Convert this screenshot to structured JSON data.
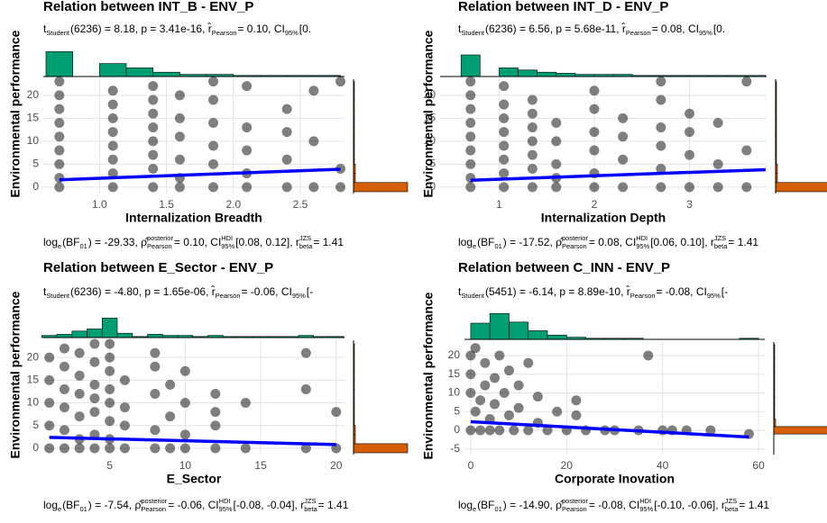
{
  "chart_data": [
    {
      "type": "scatter",
      "title": "Relation between INT_B - ENV_P",
      "subtitle": [
        {
          "text": "t"
        },
        {
          "sub": "Student"
        },
        {
          "text": "(6236) = 8.18, p = 3.41e-16, r̂"
        },
        {
          "sub": "Pearson"
        },
        {
          "text": " = 0.10, CI"
        },
        {
          "sub": "95%"
        },
        {
          "text": " [0."
        }
      ],
      "caption": [
        {
          "text": "log"
        },
        {
          "sub": "e"
        },
        {
          "text": "(BF"
        },
        {
          "sub": "01"
        },
        {
          "text": ") = -29.33, ρ̂"
        },
        {
          "sup": "posterior",
          "sub": "Pearson"
        },
        {
          "text": " = 0.10, CI"
        },
        {
          "sup": "HDI",
          "sub": "95%"
        },
        {
          "text": " [0.08, 0.12], r"
        },
        {
          "sup": "JZS",
          "sub": "beta"
        },
        {
          "text": " = 1.41"
        }
      ],
      "x_label": "Internalization Breadth",
      "y_label": "Environmental performance",
      "xlim": [
        0.58,
        2.83
      ],
      "ylim": [
        -1.4,
        23.5
      ],
      "xticks": [
        {
          "value": 1,
          "label": "1.0"
        },
        1.5,
        {
          "value": 2,
          "label": "2.0"
        },
        2.5
      ],
      "yticks": [
        0,
        5,
        10,
        15,
        20
      ],
      "grid": true,
      "x": [
        0.7,
        0.7,
        0.7,
        0.7,
        0.7,
        0.7,
        0.7,
        0.7,
        0.7,
        1.1,
        1.1,
        1.1,
        1.1,
        1.1,
        1.1,
        1.1,
        1.1,
        1.4,
        1.4,
        1.4,
        1.4,
        1.4,
        1.4,
        1.4,
        1.4,
        1.6,
        1.6,
        1.6,
        1.6,
        1.6,
        1.6,
        1.85,
        1.85,
        1.85,
        1.85,
        1.85,
        1.85,
        2.1,
        2.1,
        2.1,
        2.1,
        2.1,
        2.4,
        2.4,
        2.4,
        2.4,
        2.6,
        2.6,
        2.6,
        2.8,
        2.8,
        2.8
      ],
      "values": [
        0,
        2,
        5,
        8,
        11,
        14,
        17,
        20,
        23,
        0,
        3,
        6,
        9,
        12,
        15,
        18,
        21,
        0,
        4,
        7,
        10,
        13,
        16,
        19,
        22,
        0,
        2,
        6,
        11,
        15,
        20,
        0,
        5,
        9,
        14,
        19,
        23,
        0,
        3,
        8,
        13,
        22,
        0,
        6,
        12,
        17,
        0,
        10,
        21,
        0,
        4,
        23
      ],
      "color": "#000000",
      "fit": {
        "x": [
          0.7,
          2.8
        ],
        "values": [
          1.6,
          3.9
        ],
        "color": "#0000ff"
      },
      "top_hist": {
        "bins": [
          0.6,
          0.8,
          1.0,
          1.2,
          1.4,
          1.6,
          1.8,
          2.0,
          2.2,
          2.4,
          2.6,
          2.8
        ],
        "counts": [
          23,
          0,
          12,
          8,
          4,
          2,
          2,
          1,
          1,
          1,
          1
        ],
        "color": "#009e73"
      },
      "right_hist": {
        "bins": [
          -1,
          1,
          3,
          5,
          7,
          9,
          11,
          13,
          15,
          17,
          19,
          21,
          23
        ],
        "counts": [
          60,
          2,
          2,
          1,
          1,
          1,
          1,
          1,
          1,
          1,
          1,
          1
        ],
        "color": "#d55e00"
      }
    },
    {
      "type": "scatter",
      "title": "Relation between INT_D - ENV_P",
      "subtitle": [
        {
          "text": "t"
        },
        {
          "sub": "Student"
        },
        {
          "text": "(6236) = 6.56, p = 5.68e-11, r̂"
        },
        {
          "sub": "Pearson"
        },
        {
          "text": " = 0.08, CI"
        },
        {
          "sub": "95%"
        },
        {
          "text": " [0."
        }
      ],
      "caption": [
        {
          "text": "log"
        },
        {
          "sub": "e"
        },
        {
          "text": "(BF"
        },
        {
          "sub": "01"
        },
        {
          "text": ") = -17.52, ρ̂"
        },
        {
          "sup": "posterior",
          "sub": "Pearson"
        },
        {
          "text": " = 0.08, CI"
        },
        {
          "sup": "HDI",
          "sub": "95%"
        },
        {
          "text": " [0.06, 0.10], r"
        },
        {
          "sup": "JZS",
          "sub": "beta"
        },
        {
          "text": " = 1.41"
        }
      ],
      "x_label": "Internalization Depth",
      "y_label": "Environmental performance",
      "xlim": [
        0.38,
        3.81
      ],
      "ylim": [
        -1.4,
        23.5
      ],
      "xticks": [
        1,
        2,
        3
      ],
      "yticks": [
        0,
        5,
        10,
        15,
        20
      ],
      "grid": true,
      "x": [
        0.7,
        0.7,
        0.7,
        0.7,
        0.7,
        0.7,
        0.7,
        0.7,
        0.7,
        1.05,
        1.05,
        1.05,
        1.05,
        1.05,
        1.05,
        1.05,
        1.05,
        1.35,
        1.35,
        1.35,
        1.35,
        1.35,
        1.35,
        1.35,
        1.6,
        1.6,
        1.6,
        1.6,
        1.6,
        2.0,
        2.0,
        2.0,
        2.0,
        2.0,
        2.0,
        2.3,
        2.3,
        2.3,
        2.3,
        2.7,
        2.7,
        2.7,
        2.7,
        2.7,
        2.7,
        3.0,
        3.0,
        3.0,
        3.0,
        3.3,
        3.3,
        3.3,
        3.6,
        3.6,
        3.6
      ],
      "values": [
        0,
        2,
        5,
        8,
        11,
        14,
        17,
        20,
        23,
        0,
        3,
        6,
        9,
        12,
        15,
        18,
        22,
        0,
        4,
        7,
        10,
        13,
        16,
        19,
        0,
        2,
        5,
        10,
        14,
        0,
        3,
        8,
        12,
        17,
        21,
        0,
        6,
        11,
        15,
        0,
        4,
        9,
        13,
        19,
        23,
        0,
        7,
        12,
        16,
        0,
        5,
        14,
        0,
        8,
        23
      ],
      "color": "#000000",
      "fit": {
        "x": [
          0.7,
          3.8
        ],
        "values": [
          1.5,
          3.8
        ],
        "color": "#0000ff"
      },
      "top_hist": {
        "bins": [
          0.4,
          0.6,
          0.8,
          1.0,
          1.2,
          1.4,
          1.6,
          1.8,
          2.0,
          2.2,
          2.4,
          2.6,
          2.8,
          3.0,
          3.2,
          3.4,
          3.6,
          3.8
        ],
        "counts": [
          0,
          20,
          0,
          8,
          6,
          4,
          3,
          2,
          2,
          2,
          1,
          1,
          1,
          1,
          1,
          1,
          1
        ],
        "color": "#009e73"
      },
      "right_hist": {
        "bins": [
          -1,
          1,
          3,
          5,
          7,
          9,
          11,
          13,
          15,
          17,
          19,
          21,
          23
        ],
        "counts": [
          60,
          2,
          2,
          1,
          1,
          1,
          1,
          1,
          1,
          1,
          1,
          1
        ],
        "color": "#d55e00"
      }
    },
    {
      "type": "scatter",
      "title": "Relation between E_Sector - ENV_P",
      "subtitle": [
        {
          "text": "t"
        },
        {
          "sub": "Student"
        },
        {
          "text": "(6236) = -4.80, p = 1.65e-06, r̂"
        },
        {
          "sub": "Pearson"
        },
        {
          "text": " = -0.06, CI"
        },
        {
          "sub": "95%"
        },
        {
          "text": " [-"
        }
      ],
      "caption": [
        {
          "text": "log"
        },
        {
          "sub": "e"
        },
        {
          "text": "(BF"
        },
        {
          "sub": "01"
        },
        {
          "text": ") = -7.54, ρ̂"
        },
        {
          "sup": "posterior",
          "sub": "Pearson"
        },
        {
          "text": " = -0.06, CI"
        },
        {
          "sup": "HDI",
          "sub": "95%"
        },
        {
          "text": " [-0.08, -0.04], r"
        },
        {
          "sup": "JZS",
          "sub": "beta"
        },
        {
          "text": " = 1.41"
        }
      ],
      "x_label": "E_Sector",
      "y_label": "Environmental performance",
      "xlim": [
        0.6,
        20.55
      ],
      "ylim": [
        -1.4,
        23.8
      ],
      "xticks": [
        5,
        10,
        15,
        20
      ],
      "yticks": [
        0,
        5,
        10,
        15,
        20
      ],
      "grid": true,
      "x": [
        1,
        1,
        1,
        1,
        1,
        2,
        2,
        2,
        2,
        2,
        2,
        3,
        3,
        3,
        3,
        3,
        3,
        4,
        4,
        4,
        4,
        4,
        4,
        4,
        5,
        5,
        5,
        5,
        5,
        5,
        5,
        5,
        6,
        6,
        6,
        6,
        8,
        8,
        8,
        8,
        8,
        9,
        9,
        9,
        10,
        10,
        10,
        10,
        12,
        12,
        12,
        12,
        14,
        14,
        18,
        18,
        18,
        20,
        20
      ],
      "values": [
        0,
        5,
        10,
        15,
        20,
        0,
        4,
        9,
        13,
        18,
        22,
        0,
        2,
        7,
        12,
        16,
        21,
        0,
        3,
        8,
        11,
        14,
        19,
        23,
        0,
        2,
        6,
        10,
        13,
        17,
        20,
        23,
        0,
        5,
        9,
        15,
        0,
        4,
        12,
        18,
        21,
        0,
        7,
        14,
        0,
        3,
        10,
        17,
        0,
        5,
        8,
        12,
        0,
        10,
        0,
        13,
        21,
        0,
        8
      ],
      "color": "#000000",
      "fit": {
        "x": [
          1,
          20
        ],
        "values": [
          2.4,
          0.8
        ],
        "color": "#0000ff"
      },
      "top_hist": {
        "bins": [
          0.5,
          1.5,
          2.5,
          3.5,
          4.5,
          5.5,
          6.5,
          7.5,
          8.5,
          9.5,
          10.5,
          11.5,
          12.5,
          13.5,
          14.5,
          15.5,
          16.5,
          17.5,
          18.5,
          19.5,
          20.5
        ],
        "counts": [
          2,
          3,
          6,
          8,
          18,
          4,
          1,
          3,
          2,
          2,
          1,
          2,
          1,
          1,
          1,
          1,
          1,
          2,
          1,
          1
        ],
        "color": "#009e73"
      },
      "right_hist": {
        "bins": [
          -1,
          1,
          3,
          5,
          7,
          9,
          11,
          13,
          15,
          17,
          19,
          21,
          23
        ],
        "counts": [
          60,
          2,
          2,
          1,
          1,
          1,
          1,
          1,
          1,
          1,
          1,
          1
        ],
        "color": "#d55e00"
      }
    },
    {
      "type": "scatter",
      "title": "Relation between C_INN - ENV_P",
      "subtitle": [
        {
          "text": "t"
        },
        {
          "sub": "Student"
        },
        {
          "text": "(5451) = -6.14, p = 8.89e-10, r̂"
        },
        {
          "sub": "Pearson"
        },
        {
          "text": " = -0.08, CI"
        },
        {
          "sub": "95%"
        },
        {
          "text": " [-"
        }
      ],
      "caption": [
        {
          "text": "log"
        },
        {
          "sub": "e"
        },
        {
          "text": "(BF"
        },
        {
          "sub": "01"
        },
        {
          "text": ") = -14.90, ρ̂"
        },
        {
          "sup": "posterior",
          "sub": "Pearson"
        },
        {
          "text": " = -0.08, CI"
        },
        {
          "sup": "HDI",
          "sub": "95%"
        },
        {
          "text": " [-0.10, -0.06], r"
        },
        {
          "sup": "JZS",
          "sub": "beta"
        },
        {
          "text": " = 1.41"
        }
      ],
      "x_label": "Corporate Inovation",
      "y_label": "Environmental performance",
      "xlim": [
        -1.3,
        61.3
      ],
      "ylim": [
        -6.5,
        23.6
      ],
      "xticks": [
        0,
        20,
        40,
        60
      ],
      "yticks": [
        -5,
        0,
        5,
        10,
        15,
        20
      ],
      "grid": true,
      "x": [
        0,
        1,
        0,
        0,
        0,
        1,
        2,
        2,
        3,
        3,
        4,
        4,
        5,
        5,
        6,
        6,
        7,
        8,
        8,
        9,
        10,
        10,
        12,
        12,
        14,
        14,
        16,
        18,
        20,
        22,
        22,
        24,
        28,
        30,
        35,
        37,
        40,
        42,
        45,
        50,
        58
      ],
      "values": [
        0,
        5,
        10,
        15,
        20,
        22,
        0,
        8,
        12,
        18,
        0,
        3,
        7,
        14,
        20,
        0,
        10,
        4,
        16,
        0,
        6,
        12,
        0,
        18,
        2,
        9,
        0,
        5,
        0,
        4,
        8,
        0,
        0,
        0,
        0,
        20,
        0,
        0,
        0,
        0,
        -1
      ],
      "color": "#000000",
      "fit": {
        "x": [
          0,
          58
        ],
        "values": [
          2.3,
          -1.8
        ],
        "color": "#0000ff"
      },
      "top_hist": {
        "bins": [
          0,
          4,
          8,
          12,
          16,
          20,
          24,
          28,
          32,
          36,
          40,
          44,
          48,
          52,
          56,
          60
        ],
        "counts": [
          15,
          24,
          16,
          8,
          4,
          2,
          1,
          1,
          1,
          0,
          0,
          0,
          0,
          0,
          1
        ],
        "color": "#009e73"
      },
      "right_hist": {
        "bins": [
          -5,
          -3,
          -1,
          1,
          3,
          5,
          7,
          9,
          11,
          13,
          15,
          17,
          19,
          21,
          23,
          25
        ],
        "counts": [
          0,
          0,
          60,
          2,
          1,
          1,
          1,
          1,
          1,
          1,
          1,
          1,
          1,
          1,
          0
        ],
        "color": "#d55e00"
      }
    }
  ]
}
